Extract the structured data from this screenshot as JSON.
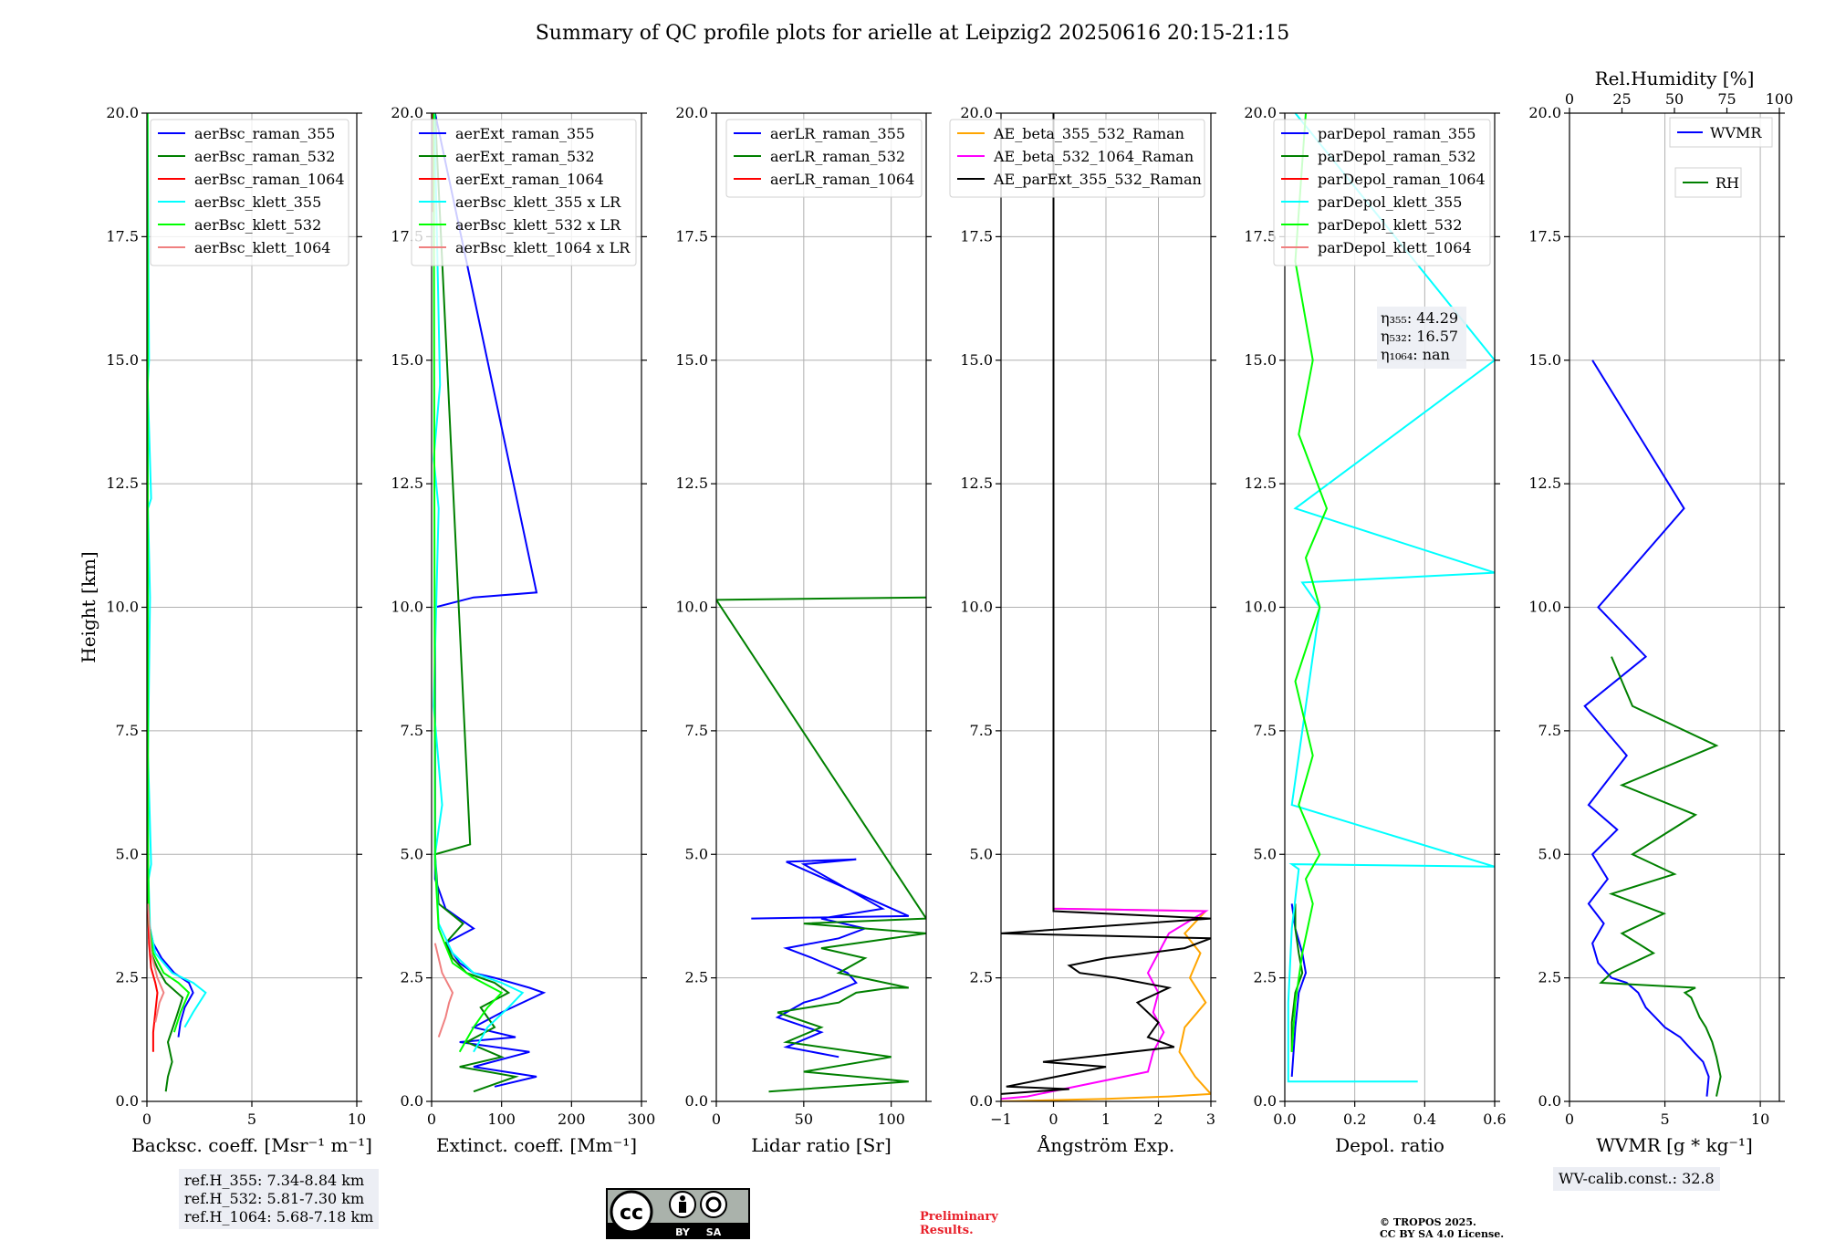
{
  "title": "Summary of QC profile plots for arielle at Leipzig2 20250616 20:15-21:15",
  "chart_data": [
    {
      "type": "line",
      "name": "backscatter",
      "xlabel": "Backsc. coeff. [Msr⁻¹ m⁻¹]",
      "ylabel": "Height [km]",
      "xlim": [
        0,
        10
      ],
      "ylim": [
        0,
        20
      ],
      "xticks": [
        "0",
        "5",
        "10"
      ],
      "yticks": [
        "0.0",
        "2.5",
        "5.0",
        "7.5",
        "10.0",
        "12.5",
        "15.0",
        "17.5",
        "20.0"
      ],
      "grid": true,
      "legend_position": "top-right",
      "series": [
        {
          "name": "aerBsc_raman_355",
          "color": "#0000ff",
          "x": [
            1.5,
            1.6,
            1.8,
            2.2,
            2.0,
            1.3,
            0.7,
            0.3,
            0.1,
            0.05,
            0.04,
            0.03,
            0.02
          ],
          "y": [
            1.3,
            1.6,
            1.9,
            2.2,
            2.4,
            2.6,
            2.9,
            3.2,
            3.6,
            4.0,
            6,
            10,
            20
          ]
        },
        {
          "name": "aerBsc_raman_532",
          "color": "#008000",
          "x": [
            0.9,
            1.0,
            1.2,
            1.0,
            1.4,
            1.7,
            0.9,
            0.5,
            0.2,
            0.1,
            0.05,
            0.03,
            0.02
          ],
          "y": [
            0.2,
            0.5,
            0.8,
            1.2,
            1.7,
            2.1,
            2.4,
            2.7,
            3.0,
            3.3,
            4.0,
            10,
            20
          ]
        },
        {
          "name": "aerBsc_raman_1064",
          "color": "#ff0000",
          "x": [
            0.3,
            0.3,
            0.4,
            0.5,
            0.4,
            0.2,
            0.1,
            0.05
          ],
          "y": [
            1.0,
            1.4,
            1.8,
            2.2,
            2.4,
            2.7,
            3.2,
            4.0
          ]
        },
        {
          "name": "aerBsc_klett_355",
          "color": "#00ffff",
          "x": [
            1.8,
            2.2,
            2.8,
            2.2,
            1.2,
            0.4,
            0.15,
            0.08,
            0.2,
            0.05,
            0.15,
            0.05,
            0.2,
            0.04,
            0.1,
            0.03
          ],
          "y": [
            1.5,
            1.8,
            2.2,
            2.4,
            2.6,
            3.0,
            3.5,
            4.5,
            4.8,
            7,
            10.2,
            12,
            12.2,
            14.5,
            15,
            20
          ]
        },
        {
          "name": "aerBsc_klett_532",
          "color": "#00ff00",
          "x": [
            1.3,
            1.6,
            2.0,
            1.5,
            0.8,
            0.3,
            0.1,
            0.05,
            0.03
          ],
          "y": [
            1.4,
            1.8,
            2.2,
            2.4,
            2.6,
            3.0,
            3.6,
            5,
            20
          ]
        },
        {
          "name": "aerBsc_klett_1064",
          "color": "#f08080",
          "x": [
            0.4,
            0.6,
            0.8,
            0.5,
            0.2,
            0.05
          ],
          "y": [
            1.6,
            2.0,
            2.2,
            2.5,
            3.0,
            4.0
          ]
        }
      ]
    },
    {
      "type": "line",
      "name": "extinction",
      "xlabel": "Extinct. coeff. [Mm⁻¹]",
      "xlim": [
        0,
        300
      ],
      "ylim": [
        0,
        20
      ],
      "xticks": [
        "0",
        "100",
        "200",
        "300"
      ],
      "yticks": [
        "0.0",
        "2.5",
        "5.0",
        "7.5",
        "10.0",
        "12.5",
        "15.0",
        "17.5",
        "20.0"
      ],
      "grid": true,
      "legend_position": "top-right",
      "series": [
        {
          "name": "aerExt_raman_355",
          "color": "#0000ff",
          "x": [
            90,
            150,
            60,
            140,
            40,
            120,
            60,
            100,
            160,
            140,
            90,
            60,
            40,
            20,
            60,
            20,
            5,
            5,
            60,
            150,
            5
          ],
          "y": [
            0.3,
            0.5,
            0.7,
            1.0,
            1.2,
            1.3,
            1.5,
            1.8,
            2.2,
            2.3,
            2.5,
            2.6,
            2.8,
            3.2,
            3.5,
            3.9,
            4.5,
            10.0,
            10.2,
            10.3,
            20
          ]
        },
        {
          "name": "aerExt_raman_532",
          "color": "#008000",
          "x": [
            60,
            120,
            40,
            100,
            50,
            90,
            70,
            110,
            90,
            50,
            30,
            20,
            45,
            10,
            5,
            55,
            5
          ],
          "y": [
            0.2,
            0.5,
            0.7,
            0.9,
            1.2,
            1.5,
            1.9,
            2.2,
            2.4,
            2.6,
            2.9,
            3.2,
            3.6,
            4.0,
            5.0,
            5.2,
            20
          ]
        },
        {
          "name": "aerExt_raman_1064",
          "color": "#ff0000",
          "x": [
            1,
            1
          ],
          "y": [
            18,
            20
          ]
        },
        {
          "name": "aerBsc_klett_355 x LR",
          "color": "#00ffff",
          "x": [
            60,
            80,
            110,
            130,
            100,
            60,
            30,
            10,
            5,
            15,
            3,
            10,
            3,
            12,
            4
          ],
          "y": [
            1.0,
            1.5,
            1.9,
            2.2,
            2.4,
            2.6,
            3.0,
            3.6,
            5,
            6,
            8,
            12,
            13,
            14.5,
            20
          ]
        },
        {
          "name": "aerBsc_klett_532 x LR",
          "color": "#00ff00",
          "x": [
            40,
            60,
            80,
            100,
            60,
            30,
            10,
            5,
            3
          ],
          "y": [
            1.0,
            1.5,
            1.9,
            2.2,
            2.5,
            2.8,
            3.5,
            4.8,
            20
          ]
        },
        {
          "name": "aerBsc_klett_1064 x LR",
          "color": "#f08080",
          "x": [
            10,
            20,
            25,
            30,
            15,
            5
          ],
          "y": [
            1.3,
            1.7,
            2.0,
            2.2,
            2.6,
            3.2
          ]
        }
      ]
    },
    {
      "type": "line",
      "name": "lidar_ratio",
      "xlabel": "Lidar ratio [Sr]",
      "xlim": [
        0,
        120
      ],
      "ylim": [
        0,
        20
      ],
      "xticks": [
        "0",
        "50",
        "100"
      ],
      "yticks": [
        "0.0",
        "2.5",
        "5.0",
        "7.5",
        "10.0",
        "12.5",
        "15.0",
        "17.5",
        "20.0"
      ],
      "grid": true,
      "legend_position": "top-right",
      "series": [
        {
          "name": "aerLR_raman_355",
          "color": "#0000ff",
          "x": [
            70,
            40,
            60,
            35,
            50,
            60,
            80,
            75,
            55,
            40,
            70,
            85,
            60,
            95,
            50,
            80,
            40,
            110,
            20
          ],
          "y": [
            0.9,
            1.1,
            1.4,
            1.7,
            2.0,
            2.1,
            2.4,
            2.6,
            2.9,
            3.1,
            3.3,
            3.5,
            3.7,
            3.9,
            4.8,
            4.9,
            4.85,
            3.75,
            3.7
          ]
        },
        {
          "name": "aerLR_raman_532",
          "color": "#008000",
          "x": [
            30,
            110,
            50,
            100,
            40,
            60,
            35,
            70,
            80,
            100,
            110,
            70,
            85,
            60,
            100,
            120,
            50,
            120,
            0,
            120
          ],
          "y": [
            0.2,
            0.4,
            0.6,
            0.9,
            1.2,
            1.5,
            1.8,
            2.0,
            2.2,
            2.3,
            2.3,
            2.6,
            2.9,
            3.1,
            3.3,
            3.4,
            3.6,
            3.7,
            10.15,
            10.2
          ]
        },
        {
          "name": "aerLR_raman_1064",
          "color": "#ff0000",
          "x": [],
          "y": []
        }
      ]
    },
    {
      "type": "line",
      "name": "angstrom",
      "xlabel": "Ångström Exp.",
      "xlim": [
        -1,
        3
      ],
      "ylim": [
        0,
        20
      ],
      "xticks": [
        "−1",
        "0",
        "1",
        "2",
        "3"
      ],
      "yticks": [
        "0.0",
        "2.5",
        "5.0",
        "7.5",
        "10.0",
        "12.5",
        "15.0",
        "17.5",
        "20.0"
      ],
      "grid": true,
      "legend_position": "top-right",
      "series": [
        {
          "name": "AE_beta_355_532_Raman",
          "color": "#ffa500",
          "x": [
            -1,
            1,
            2.2,
            3.0,
            2.7,
            2.4,
            2.5,
            2.9,
            2.6,
            2.8,
            2.5,
            2.9,
            0,
            0
          ],
          "y": [
            0,
            0.05,
            0.1,
            0.15,
            0.5,
            1.0,
            1.5,
            2.0,
            2.5,
            3.0,
            3.4,
            3.85,
            3.9,
            20
          ]
        },
        {
          "name": "AE_beta_532_1064_Raman",
          "color": "#ff00ff",
          "x": [
            -1,
            -0.5,
            1.8,
            1.9,
            2.1,
            1.9,
            2.0,
            1.8,
            2.0,
            2.2,
            2.9,
            0,
            0
          ],
          "y": [
            0.05,
            0.1,
            0.6,
            1.0,
            1.4,
            1.8,
            2.2,
            2.6,
            3.0,
            3.4,
            3.85,
            3.9,
            20
          ]
        },
        {
          "name": "AE_parExt_355_532_Raman",
          "color": "#000000",
          "x": [
            -1,
            0.3,
            -0.9,
            1.0,
            -0.2,
            2.3,
            1.8,
            2.0,
            1.6,
            2.2,
            1.2,
            0.5,
            0.3,
            1.0,
            1.8,
            2.5,
            3.0,
            -1,
            3.0,
            0,
            0
          ],
          "y": [
            0.15,
            0.25,
            0.3,
            0.7,
            0.8,
            1.1,
            1.3,
            1.6,
            2.0,
            2.3,
            2.5,
            2.6,
            2.75,
            2.9,
            3.0,
            3.1,
            3.3,
            3.4,
            3.7,
            3.85,
            20
          ]
        }
      ]
    },
    {
      "type": "line",
      "name": "depolarization",
      "xlabel": "Depol. ratio",
      "xlim": [
        0,
        0.6
      ],
      "ylim": [
        0,
        20
      ],
      "xticks": [
        "0.0",
        "0.2",
        "0.4",
        "0.6"
      ],
      "yticks": [
        "0.0",
        "2.5",
        "5.0",
        "7.5",
        "10.0",
        "12.5",
        "15.0",
        "17.5",
        "20.0"
      ],
      "grid": true,
      "legend_position": "top-left",
      "annotations": [
        {
          "label": "η₃₅₅: 44.29"
        },
        {
          "label": "η₅₃₂: 16.57"
        },
        {
          "label": "η₁₀₆₄: nan"
        }
      ],
      "series": [
        {
          "name": "parDepol_raman_355",
          "color": "#0000ff",
          "x": [
            0.02,
            0.03,
            0.04,
            0.06,
            0.05,
            0.03,
            0.02
          ],
          "y": [
            0.5,
            1.5,
            2.2,
            2.6,
            3.0,
            3.5,
            4.0
          ]
        },
        {
          "name": "parDepol_raman_532",
          "color": "#008000",
          "x": [
            0.02,
            0.02,
            0.03,
            0.05,
            0.04,
            0.03,
            0.03
          ],
          "y": [
            1.0,
            1.6,
            2.2,
            2.6,
            3.0,
            3.5,
            4.0
          ]
        },
        {
          "name": "parDepol_raman_1064",
          "color": "#ff0000",
          "x": [],
          "y": []
        },
        {
          "name": "parDepol_klett_355",
          "color": "#00ffff",
          "x": [
            0.38,
            0.01,
            0.01,
            0.02,
            0.04,
            0.02,
            0.6,
            0.02,
            0.1,
            0.05,
            0.6,
            0.03,
            0.6,
            0.03
          ],
          "y": [
            0.4,
            0.4,
            2.0,
            3.5,
            4.7,
            4.8,
            4.75,
            6.0,
            10.0,
            10.5,
            10.7,
            12.0,
            15.0,
            20
          ]
        },
        {
          "name": "parDepol_klett_532",
          "color": "#00ff00",
          "x": [
            0.02,
            0.03,
            0.05,
            0.08,
            0.06,
            0.1,
            0.04,
            0.08,
            0.03,
            0.1,
            0.06,
            0.12,
            0.04,
            0.08,
            0.03,
            0.06
          ],
          "y": [
            1.0,
            2.0,
            3.0,
            4.0,
            4.5,
            5.0,
            6.0,
            7.0,
            8.5,
            10.0,
            11.0,
            12.0,
            13.5,
            15.0,
            17.0,
            20
          ]
        },
        {
          "name": "parDepol_klett_1064",
          "color": "#f08080",
          "x": [],
          "y": []
        }
      ]
    },
    {
      "type": "line",
      "name": "water_vapour",
      "xlabel": "WVMR [g * kg⁻¹]",
      "xlabel_top": "Rel.Humidity [%]",
      "xlim": [
        0,
        11
      ],
      "ylim": [
        0,
        20
      ],
      "xlim_top": [
        0,
        100
      ],
      "xticks": [
        "0",
        "5",
        "10"
      ],
      "xticks_top": [
        "0",
        "25",
        "50",
        "75",
        "100"
      ],
      "yticks": [
        "0.0",
        "2.5",
        "5.0",
        "7.5",
        "10.0",
        "12.5",
        "15.0",
        "17.5",
        "20.0"
      ],
      "grid": true,
      "legend_position": "top-right",
      "series": [
        {
          "name": "WVMR",
          "color": "#0000ff",
          "x": [
            7.2,
            7.3,
            7.0,
            6.5,
            5.8,
            5.0,
            4.5,
            4.0,
            3.6,
            3.0,
            2.2,
            1.5,
            1.2,
            1.8,
            1.0,
            2.0,
            1.2,
            2.5,
            1.0,
            3.0,
            0.8,
            4.0,
            1.5,
            6.0,
            1.2
          ],
          "y": [
            0.1,
            0.5,
            0.8,
            1.0,
            1.3,
            1.5,
            1.7,
            1.9,
            2.2,
            2.4,
            2.5,
            2.8,
            3.2,
            3.6,
            4.0,
            4.5,
            5.0,
            5.5,
            6.0,
            7.0,
            8.0,
            9.0,
            10.0,
            12.0,
            15.0
          ]
        },
        {
          "name": "RH",
          "color": "#008000",
          "x": [
            70,
            72,
            70,
            68,
            65,
            62,
            60,
            58,
            55,
            60,
            15,
            20,
            40,
            25,
            45,
            20,
            50,
            30,
            60,
            25,
            70,
            30,
            20
          ],
          "y": [
            0.1,
            0.5,
            0.9,
            1.2,
            1.5,
            1.7,
            1.9,
            2.1,
            2.2,
            2.3,
            2.4,
            2.6,
            3.0,
            3.4,
            3.8,
            4.2,
            4.6,
            5.0,
            5.8,
            6.4,
            7.2,
            8.0,
            9.0
          ]
        }
      ]
    }
  ],
  "info": {
    "ref_heights": [
      "ref.H_355: 7.34-8.84 km",
      "ref.H_532: 5.81-7.30 km",
      "ref.H_1064: 5.68-7.18 km"
    ],
    "wv_calib": "WV-calib.const.: 32.8",
    "prelim": [
      "Preliminary",
      "Results."
    ],
    "copyright": [
      "© TROPOS 2025.",
      "CC BY SA 4.0 License."
    ],
    "license_badge": {
      "cc": "cc",
      "by": "BY",
      "sa": "SA"
    }
  }
}
